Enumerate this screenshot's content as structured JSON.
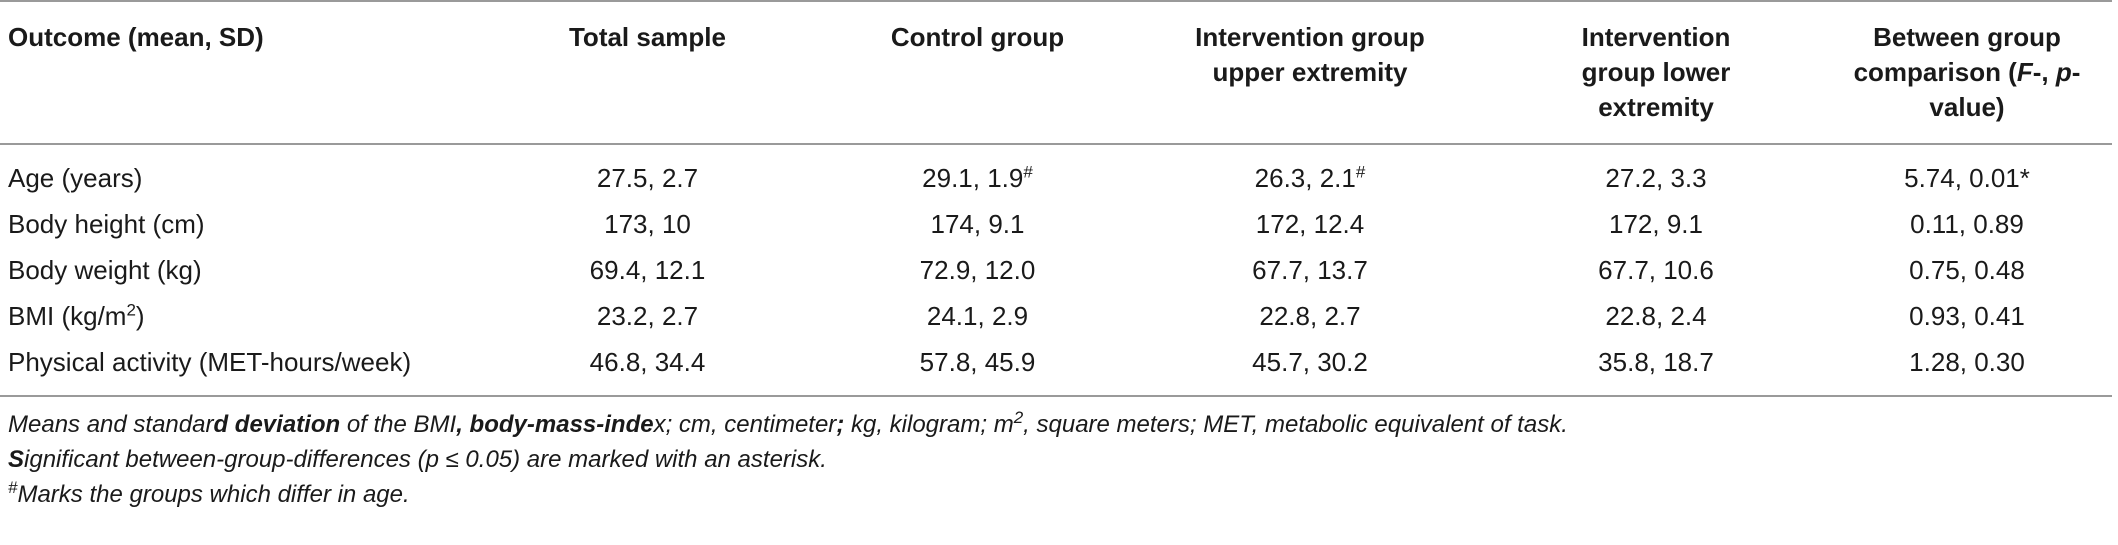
{
  "table": {
    "headers": [
      "Outcome (mean, SD)",
      "Total sample",
      "Control group",
      "Intervention group upper extremity",
      "Intervention group lower extremity",
      "Between group comparison (",
      "F",
      "-, ",
      "p",
      "-value)"
    ],
    "rows": [
      {
        "label": "Age (years)",
        "total": "27.5, 2.7",
        "control": "29.1, 1.9",
        "control_mark": "#",
        "upper": "26.3, 2.1",
        "upper_mark": "#",
        "lower": "27.2, 3.3",
        "comparison": "5.74, 0.01*"
      },
      {
        "label": "Body height (cm)",
        "total": "173, 10",
        "control": "174, 9.1",
        "upper": "172, 12.4",
        "lower": "172, 9.1",
        "comparison": "0.11, 0.89"
      },
      {
        "label": "Body weight (kg)",
        "total": "69.4, 12.1",
        "control": "72.9, 12.0",
        "upper": "67.7, 13.7",
        "lower": "67.7, 10.6",
        "comparison": "0.75, 0.48"
      },
      {
        "label": "BMI (kg/m",
        "label_sup": "2",
        "label_end": ")",
        "total": "23.2, 2.7",
        "control": "24.1, 2.9",
        "upper": "22.8, 2.7",
        "lower": "22.8, 2.4",
        "comparison": "0.93, 0.41"
      },
      {
        "label": "Physical activity (MET-hours/week)",
        "total": "46.8, 34.4",
        "control": "57.8, 45.9",
        "upper": "45.7, 30.2",
        "lower": "35.8, 18.7",
        "comparison": "1.28, 0.30"
      }
    ]
  },
  "footnotes": {
    "line1": {
      "a": "Means and standar",
      "b": "d deviation ",
      "c": " of the BMI",
      "d": ", body-mass-inde",
      "e": "x; cm, centimeter",
      "f": ";",
      "g": " kg, kilogram; m",
      "sup": "2",
      "h": ", square meters; MET, metabolic equivalent of task."
    },
    "line2": {
      "a": "S",
      "b": "ignificant between-group-differences (p ≤ 0.05) are marked with an asterisk."
    },
    "line3": {
      "mark": "#",
      "text": "Marks the groups which differ in age."
    }
  }
}
